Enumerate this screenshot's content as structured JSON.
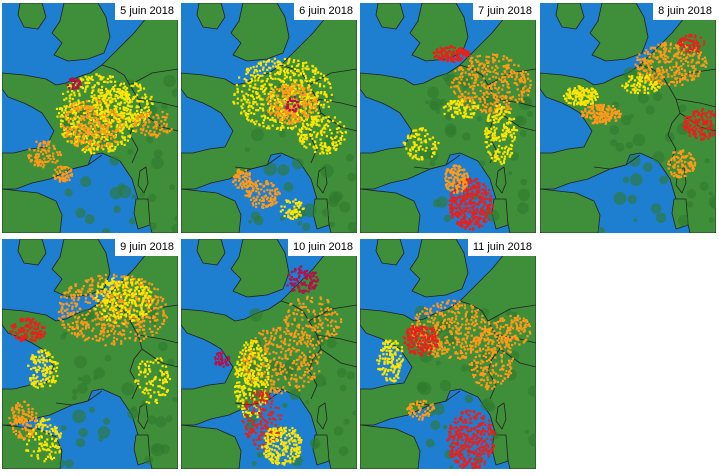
{
  "title": "",
  "colors": {
    "sea": "#1e7fd0",
    "land": "#3f8f3a",
    "land_dark": "#2f7a2e",
    "border": "#202020",
    "yellow": "#ffe600",
    "orange": "#ff9a1a",
    "red": "#e8201c",
    "magenta": "#b0124a"
  },
  "panels": [
    {
      "date": "5 juin 2018"
    },
    {
      "date": "6 juin 2018"
    },
    {
      "date": "7 juin 2018"
    },
    {
      "date": "8 juin 2018"
    },
    {
      "date": "9 juin 2018"
    },
    {
      "date": "10 juin 2018"
    },
    {
      "date": "11 juin 2018"
    }
  ]
}
